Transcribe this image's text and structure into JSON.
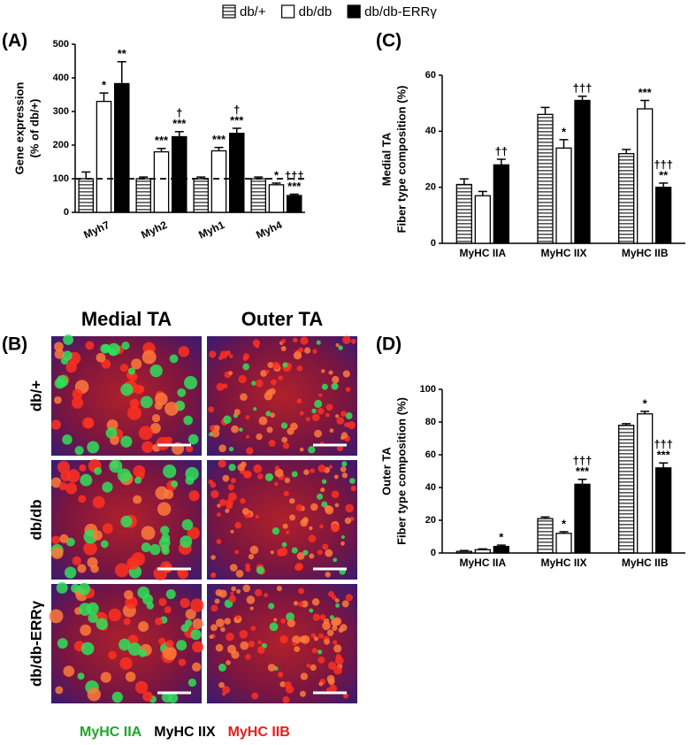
{
  "chart_data": [
    {
      "type": "bar",
      "panel_label": "(A)",
      "ylabel": [
        "Gene expression",
        "(% of db/+)"
      ],
      "categories": [
        "Myh7",
        "Myh2",
        "Myh1",
        "Myh4"
      ],
      "ylim": [
        0,
        500
      ],
      "yticks": [
        0,
        100,
        200,
        300,
        400,
        500
      ],
      "ref_line": 100,
      "rotate_categories": true,
      "series": [
        {
          "name": "db/+",
          "color": "#555555",
          "hatch": true,
          "values": [
            100,
            100,
            100,
            100
          ],
          "errors": [
            20,
            5,
            5,
            5
          ],
          "annotations": [
            null,
            null,
            null,
            null
          ]
        },
        {
          "name": "db/db",
          "color": "#ffffff",
          "values": [
            330,
            180,
            183,
            82
          ],
          "errors": [
            25,
            10,
            10,
            5
          ],
          "annotations": [
            [
              "*"
            ],
            [
              "***"
            ],
            [
              "***"
            ],
            [
              "*"
            ]
          ]
        },
        {
          "name": "db/db-ERRγ",
          "color": "#000000",
          "values": [
            383,
            225,
            235,
            50
          ],
          "errors": [
            65,
            15,
            15,
            4
          ],
          "annotations": [
            [
              "**"
            ],
            [
              "†",
              "***"
            ],
            [
              "†",
              "***"
            ],
            [
              "†††",
              "***"
            ]
          ]
        }
      ]
    },
    {
      "type": "bar",
      "panel_label": "(C)",
      "ylabel": [
        "Medial TA",
        "Fiber type composition (%)"
      ],
      "categories": [
        "MyHC IIA",
        "MyHC IIX",
        "MyHC IIB"
      ],
      "ylim": [
        0,
        60
      ],
      "yticks": [
        0,
        20,
        40,
        60
      ],
      "series": [
        {
          "color": "#555555",
          "hatch": true,
          "values": [
            21,
            46,
            32
          ],
          "errors": [
            2,
            2.5,
            1.5
          ],
          "annotations": [
            null,
            null,
            null
          ]
        },
        {
          "color": "#ffffff",
          "values": [
            17,
            34,
            48
          ],
          "errors": [
            1.5,
            3,
            3
          ],
          "annotations": [
            null,
            [
              "*"
            ],
            [
              "***"
            ]
          ]
        },
        {
          "color": "#000000",
          "values": [
            28,
            51,
            20
          ],
          "errors": [
            2,
            1.5,
            1.5
          ],
          "annotations": [
            [
              "††"
            ],
            [
              "†††"
            ],
            [
              "†††",
              "**"
            ]
          ]
        }
      ]
    },
    {
      "type": "bar",
      "panel_label": "(D)",
      "ylabel": [
        "Outer TA",
        "Fiber type composition (%)"
      ],
      "categories": [
        "MyHC IIA",
        "MyHC IIX",
        "MyHC IIB"
      ],
      "ylim": [
        0,
        100
      ],
      "yticks": [
        0,
        20,
        40,
        60,
        80,
        100
      ],
      "series": [
        {
          "color": "#555555",
          "hatch": true,
          "values": [
            1,
            21,
            78
          ],
          "errors": [
            0.5,
            1,
            1
          ],
          "annotations": [
            null,
            null,
            null
          ]
        },
        {
          "color": "#ffffff",
          "values": [
            2,
            12,
            85
          ],
          "errors": [
            0.5,
            1,
            1.5
          ],
          "annotations": [
            null,
            [
              "*"
            ],
            [
              "*"
            ]
          ]
        },
        {
          "color": "#000000",
          "values": [
            4,
            42,
            52
          ],
          "errors": [
            0.8,
            3,
            3
          ],
          "annotations": [
            [
              "*"
            ],
            [
              "†††",
              "***"
            ],
            [
              "†††",
              "***"
            ]
          ]
        }
      ]
    }
  ],
  "micrographs": {
    "panel_label": "(B)",
    "columns": [
      "Medial TA",
      "Outer TA"
    ],
    "rows": [
      "db/+",
      "db/db",
      "db/db-ERRγ"
    ],
    "stains": [
      {
        "text": "MyHC IIA",
        "color": "#1fa62a"
      },
      {
        "text": "MyHC IIX",
        "color": "#000000"
      },
      {
        "text": "MyHC IIB",
        "color": "#e0201c"
      }
    ]
  }
}
